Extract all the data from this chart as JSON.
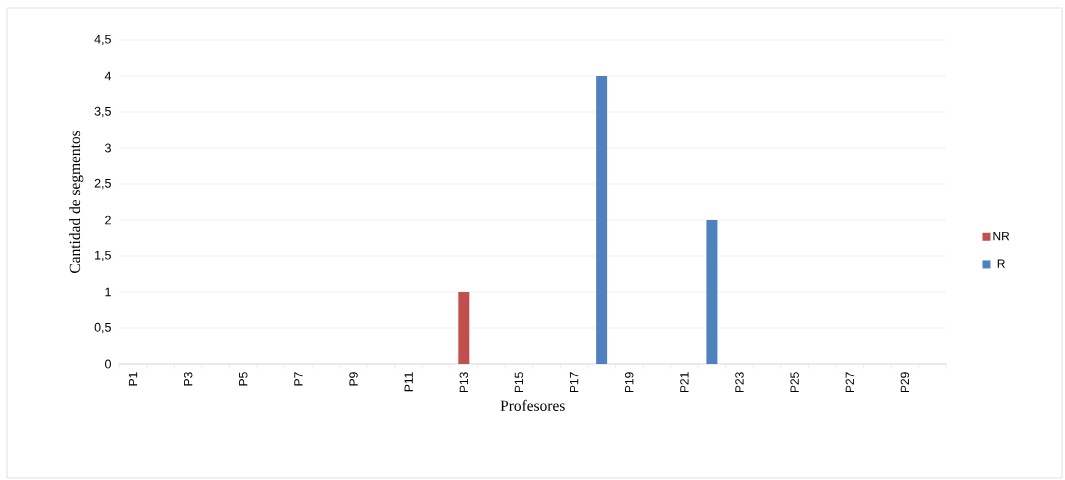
{
  "chart_data": {
    "type": "bar",
    "stacked": true,
    "xlabel": "Profesores",
    "ylabel": "Cantidad de segmentos",
    "categories": [
      "P1",
      null,
      "P3",
      null,
      "P5",
      null,
      "P7",
      null,
      "P9",
      null,
      "P11",
      null,
      "P13",
      null,
      "P15",
      null,
      "P17",
      null,
      "P19",
      null,
      "P21",
      null,
      "P23",
      null,
      "P25",
      null,
      "P27",
      null,
      "P29",
      null
    ],
    "series": [
      {
        "name": "NR",
        "color": "#c0504d",
        "values": [
          0,
          0,
          0,
          0,
          0,
          0,
          0,
          0,
          0,
          0,
          0,
          0,
          1,
          0,
          0,
          0,
          0,
          0,
          0,
          0,
          0,
          0,
          0,
          0,
          0,
          0,
          0,
          0,
          0,
          0
        ]
      },
      {
        "name": "R",
        "color": "#4f81bd",
        "values": [
          0,
          0,
          0,
          0,
          0,
          0,
          0,
          0,
          0,
          0,
          0,
          0,
          0,
          0,
          0,
          0,
          0,
          4,
          0,
          0,
          0,
          2,
          0,
          0,
          0,
          0,
          0,
          0,
          0,
          0
        ]
      }
    ],
    "ylim": [
      0,
      4.5
    ],
    "yticks": [
      0,
      {
        "value": 0.5,
        "label": "0,5"
      },
      1,
      {
        "value": 1.5,
        "label": "1,5"
      },
      2,
      {
        "value": 2.5,
        "label": "2,5"
      },
      3,
      {
        "value": 3.5,
        "label": "3,5"
      },
      4,
      {
        "value": 4.5,
        "label": "4,5"
      }
    ],
    "grid": "y",
    "legend": "right"
  }
}
